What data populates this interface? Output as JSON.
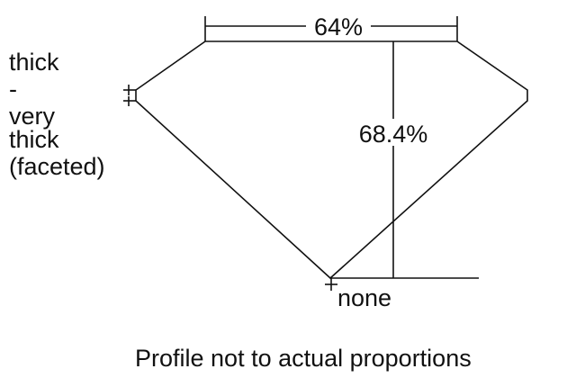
{
  "girdle": {
    "lines": [
      "thick",
      "-",
      "very",
      "thick",
      "(faceted)"
    ]
  },
  "table_percent": "64%",
  "depth_percent": "68.4%",
  "culet": "none",
  "note": "Profile not to actual proportions"
}
